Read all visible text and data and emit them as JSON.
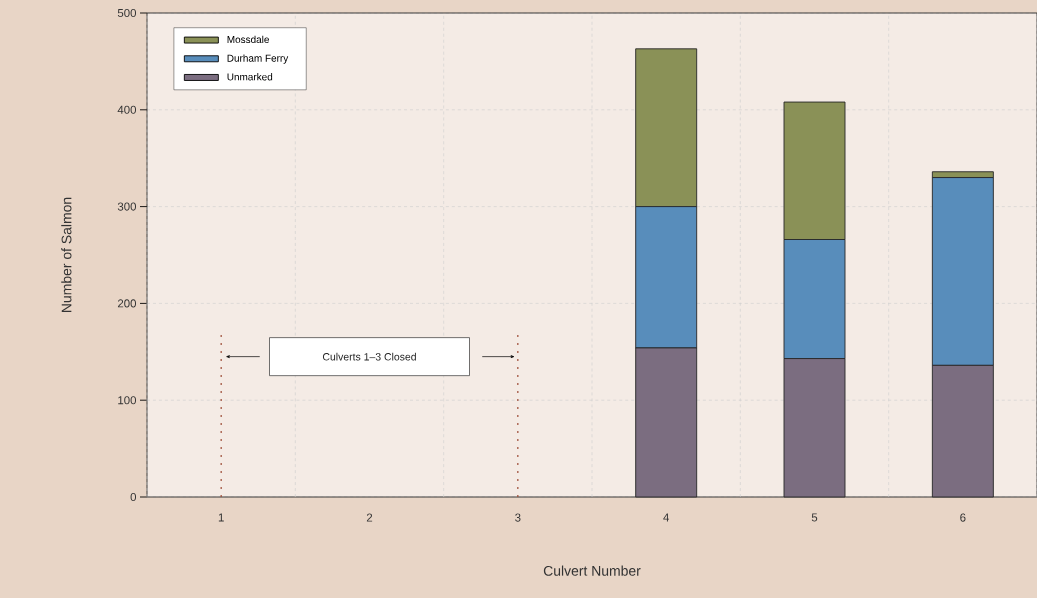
{
  "chart_data": {
    "type": "bar",
    "stacked": true,
    "xlabel": "Culvert Number",
    "ylabel": "Number of Salmon",
    "categories": [
      "1",
      "2",
      "3",
      "4",
      "5",
      "6"
    ],
    "series": [
      {
        "name": "Unmarked",
        "color": "#7b6d80",
        "values": [
          0,
          0,
          0,
          154,
          143,
          136
        ]
      },
      {
        "name": "Durham Ferry",
        "color": "#588dbb",
        "values": [
          0,
          0,
          0,
          146,
          123,
          194
        ]
      },
      {
        "name": "Mossdale",
        "color": "#8a9157",
        "values": [
          0,
          0,
          0,
          163,
          142,
          6
        ]
      }
    ],
    "ylim": [
      0,
      500
    ],
    "yticks": [
      0,
      100,
      200,
      300,
      400,
      500
    ],
    "grid": true,
    "legend": "top left",
    "ref_lines": [
      {
        "axis": "x",
        "value": "1",
        "color": "#9b4a35",
        "line_style": "dotted"
      },
      {
        "axis": "x",
        "value": "3",
        "color": "#9b4a35",
        "line_style": "dotted"
      }
    ],
    "annotations": [
      "Culverts 1–3 Closed"
    ]
  }
}
